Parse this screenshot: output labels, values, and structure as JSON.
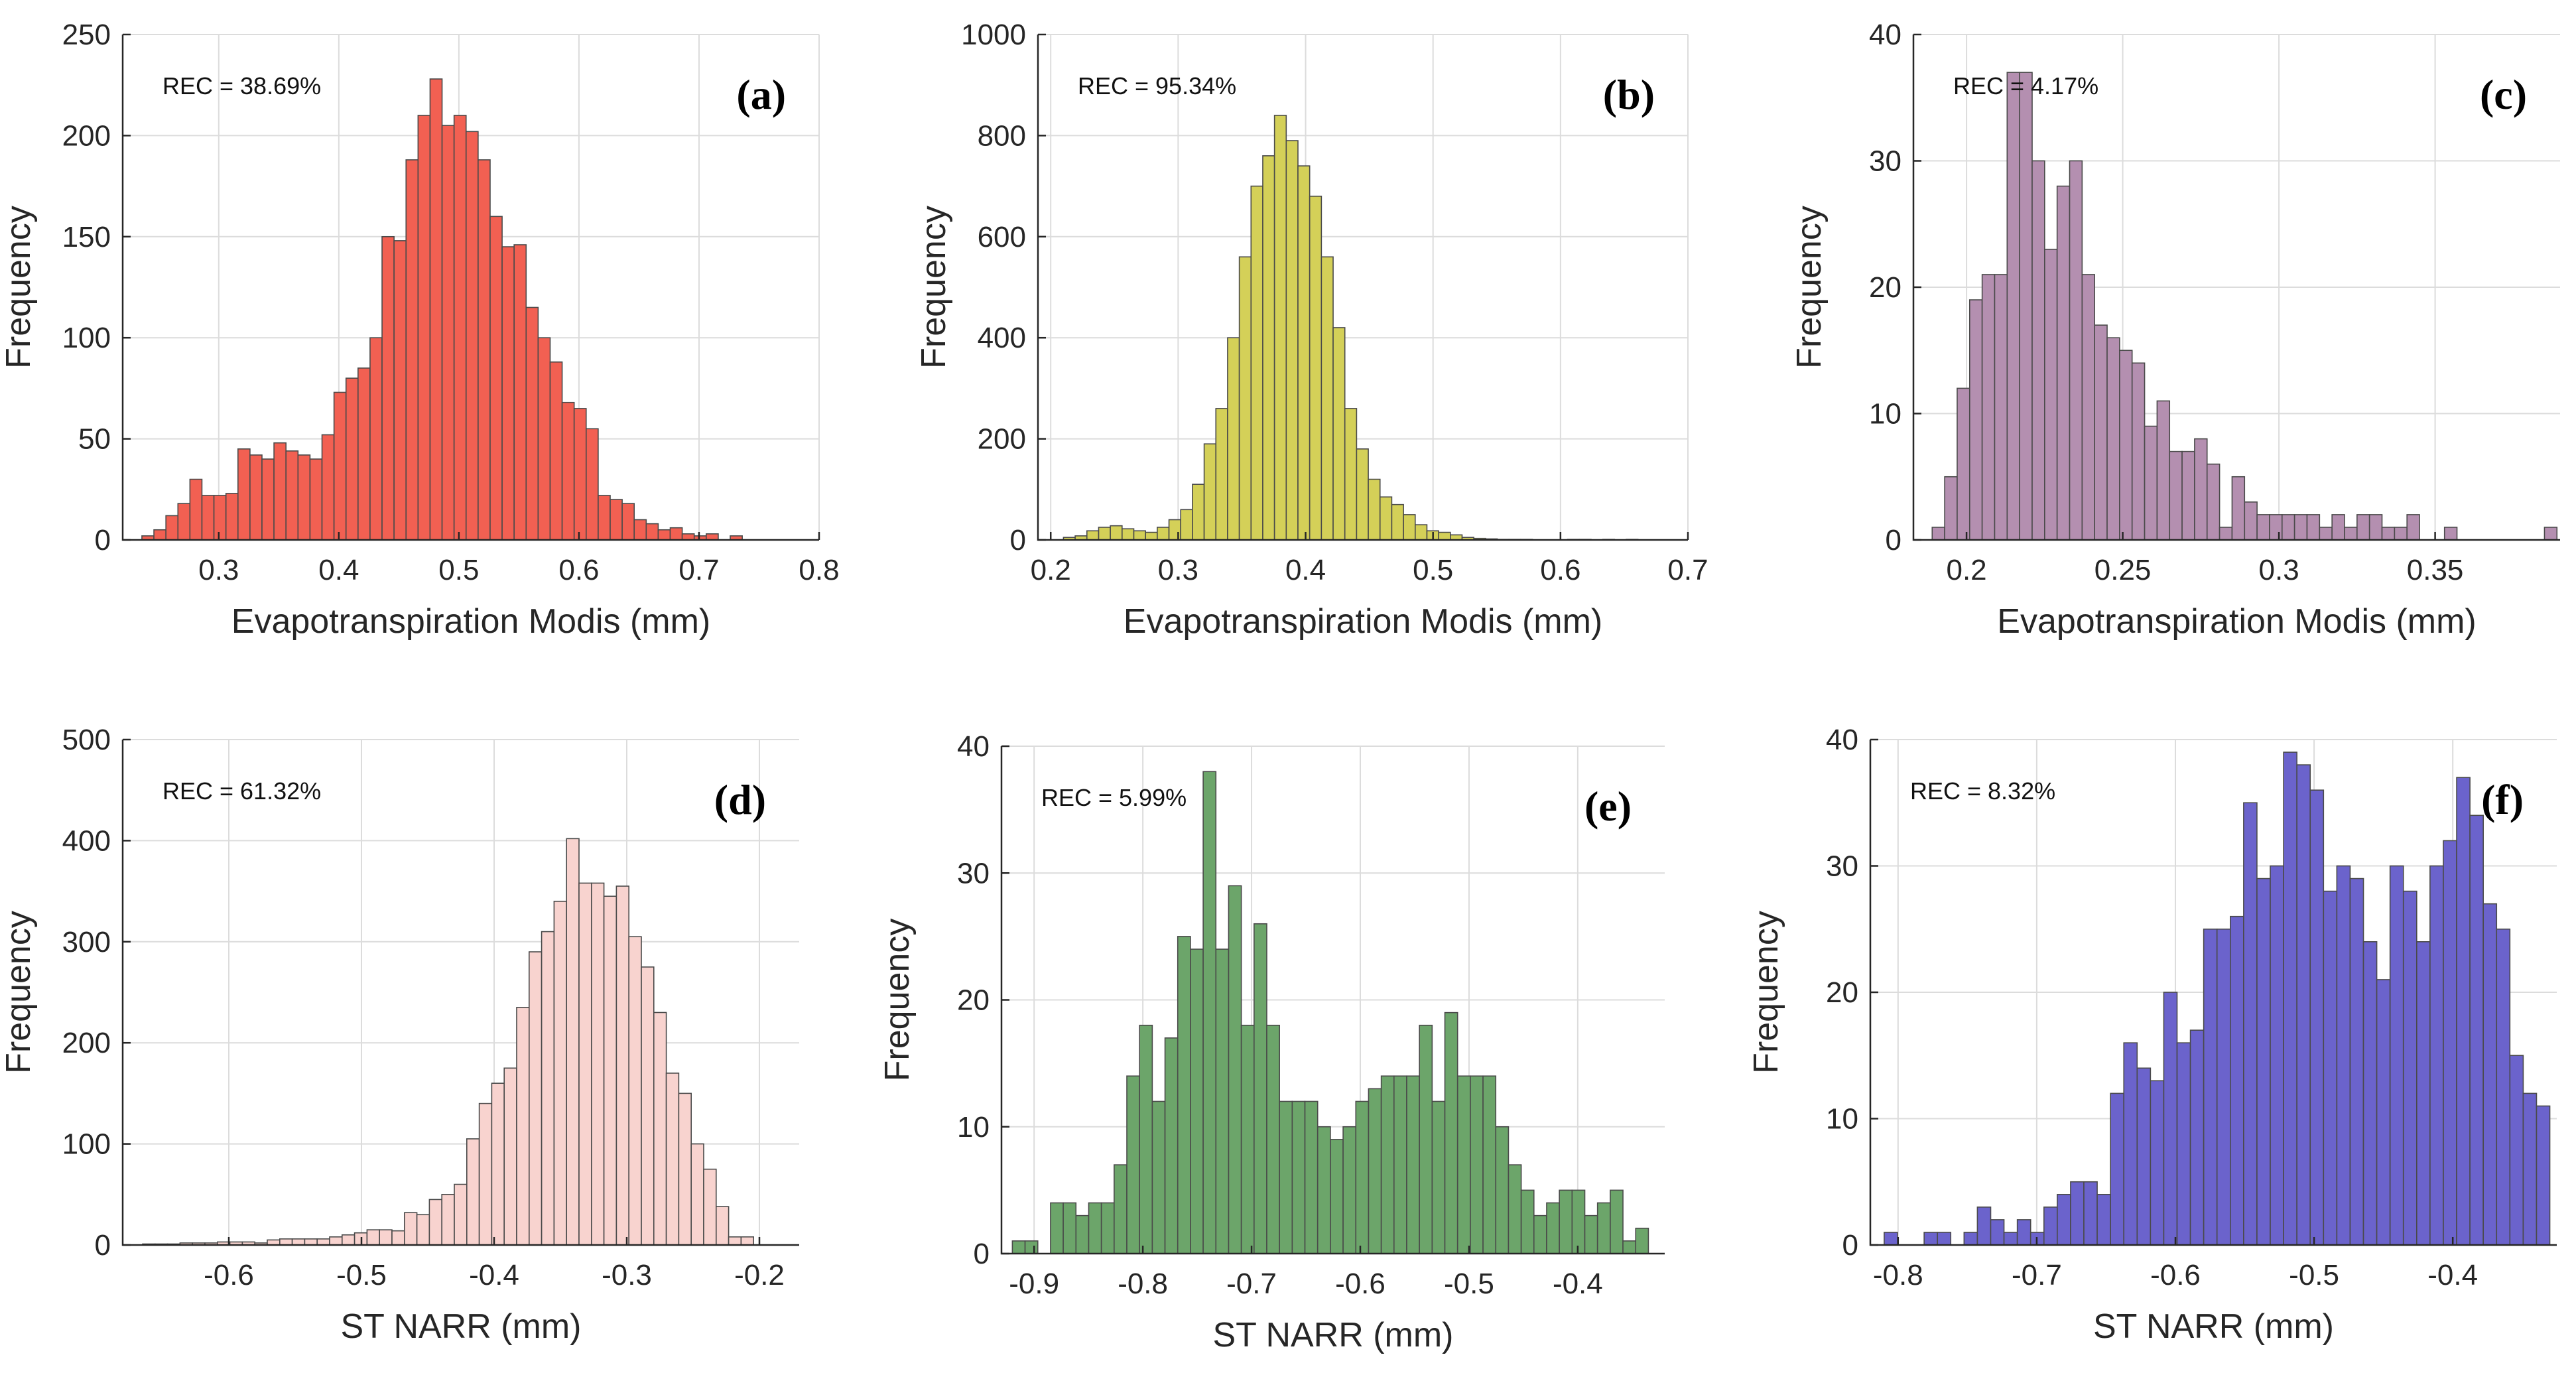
{
  "chart_data": [
    {
      "type": "bar",
      "panel_label": "(a)",
      "annotation": "REC = 38.69%",
      "xlabel": "Evapotranspiration Modis (mm)",
      "ylabel": "Frequency",
      "xlim": [
        0.22,
        0.8
      ],
      "ylim": [
        0,
        250
      ],
      "xticks": [
        0.3,
        0.4,
        0.5,
        0.6,
        0.7,
        0.8
      ],
      "xtick_labels": [
        "0.3",
        "0.4",
        "0.5",
        "0.6",
        "0.7",
        "0.8"
      ],
      "yticks": [
        0,
        50,
        100,
        150,
        200,
        250
      ],
      "ytick_labels": [
        "0",
        "50",
        "100",
        "150",
        "200",
        "250"
      ],
      "bin_start": 0.236,
      "bin_width": 0.01,
      "values": [
        2,
        5,
        12,
        18,
        30,
        22,
        22,
        23,
        45,
        42,
        40,
        48,
        44,
        42,
        40,
        52,
        73,
        80,
        85,
        100,
        150,
        148,
        188,
        210,
        228,
        205,
        210,
        202,
        188,
        160,
        145,
        146,
        115,
        100,
        88,
        68,
        65,
        55,
        22,
        20,
        18,
        10,
        8,
        5,
        6,
        3,
        2,
        3,
        0,
        2
      ],
      "color": "#f26052",
      "grid": true
    },
    {
      "type": "bar",
      "panel_label": "(b)",
      "annotation": "REC = 95.34%",
      "xlabel": "Evapotranspiration Modis (mm)",
      "ylabel": "Frequency",
      "xlim": [
        0.19,
        0.7
      ],
      "ylim": [
        0,
        1000
      ],
      "xticks": [
        0.2,
        0.3,
        0.4,
        0.5,
        0.6,
        0.7
      ],
      "xtick_labels": [
        "0.2",
        "0.3",
        "0.4",
        "0.5",
        "0.6",
        "0.7"
      ],
      "yticks": [
        0,
        200,
        400,
        600,
        800,
        1000
      ],
      "ytick_labels": [
        "0",
        "200",
        "400",
        "600",
        "800",
        "1000"
      ],
      "bin_start": 0.21,
      "bin_width": 0.0092,
      "values": [
        5,
        8,
        18,
        25,
        28,
        22,
        18,
        15,
        25,
        40,
        60,
        110,
        190,
        260,
        400,
        560,
        700,
        760,
        840,
        790,
        740,
        680,
        560,
        420,
        260,
        180,
        120,
        85,
        70,
        50,
        30,
        18,
        15,
        10,
        5,
        3,
        2,
        1,
        1,
        1,
        0,
        0,
        0,
        1,
        1,
        0,
        1,
        0,
        1,
        0
      ],
      "color": "#d4d058",
      "grid": true
    },
    {
      "type": "bar",
      "panel_label": "(c)",
      "annotation": "REC = 4.17%",
      "xlabel": "Evapotranspiration Modis (mm)",
      "ylabel": "Frequency",
      "xlim": [
        0.183,
        0.39
      ],
      "ylim": [
        0,
        40
      ],
      "xticks": [
        0.2,
        0.25,
        0.3,
        0.35
      ],
      "xtick_labels": [
        "0.2",
        "0.25",
        "0.3",
        "0.35"
      ],
      "yticks": [
        0,
        10,
        20,
        30,
        40
      ],
      "ytick_labels": [
        "0",
        "10",
        "20",
        "30",
        "40"
      ],
      "bin_start": 0.189,
      "bin_width": 0.004,
      "values": [
        1,
        5,
        12,
        19,
        21,
        21,
        37,
        37,
        30,
        23,
        28,
        30,
        21,
        17,
        16,
        15,
        14,
        9,
        11,
        7,
        7,
        8,
        6,
        1,
        5,
        3,
        2,
        2,
        2,
        2,
        2,
        1,
        2,
        1,
        2,
        2,
        1,
        1,
        2,
        0,
        0,
        1,
        0,
        0,
        0,
        0,
        0,
        0,
        0,
        1
      ],
      "color": "#b48fb0",
      "grid": true
    },
    {
      "type": "bar",
      "panel_label": "(d)",
      "annotation": "REC = 61.32%",
      "xlabel": "ST NARR (mm)",
      "ylabel": "Frequency",
      "xlim": [
        -0.68,
        -0.17
      ],
      "ylim": [
        0,
        500
      ],
      "xticks": [
        -0.6,
        -0.5,
        -0.4,
        -0.3,
        -0.2
      ],
      "xtick_labels": [
        "-0.6",
        "-0.5",
        "-0.4",
        "-0.3",
        "-0.2"
      ],
      "yticks": [
        0,
        100,
        200,
        300,
        400,
        500
      ],
      "ytick_labels": [
        "0",
        "100",
        "200",
        "300",
        "400",
        "500"
      ],
      "bin_start": -0.665,
      "bin_width": 0.0094,
      "values": [
        1,
        1,
        1,
        2,
        2,
        2,
        3,
        3,
        3,
        2,
        5,
        6,
        6,
        6,
        6,
        8,
        10,
        12,
        15,
        15,
        14,
        32,
        30,
        45,
        50,
        60,
        105,
        140,
        160,
        175,
        235,
        290,
        310,
        340,
        402,
        358,
        358,
        345,
        355,
        305,
        275,
        230,
        170,
        150,
        100,
        75,
        38,
        8,
        8,
        0
      ],
      "color": "#f8d3cf",
      "grid": true
    },
    {
      "type": "bar",
      "panel_label": "(e)",
      "annotation": "REC = 5.99%",
      "xlabel": "ST NARR (mm)",
      "ylabel": "Frequency",
      "xlim": [
        -0.93,
        -0.32
      ],
      "ylim": [
        0,
        40
      ],
      "xticks": [
        -0.9,
        -0.8,
        -0.7,
        -0.6,
        -0.5,
        -0.4
      ],
      "xtick_labels": [
        "-0.9",
        "-0.8",
        "-0.7",
        "-0.6",
        "-0.5",
        "-0.4"
      ],
      "yticks": [
        0,
        10,
        20,
        30,
        40
      ],
      "ytick_labels": [
        "0",
        "10",
        "20",
        "30",
        "40"
      ],
      "bin_start": -0.92,
      "bin_width": 0.0117,
      "values": [
        1,
        1,
        0,
        4,
        4,
        3,
        4,
        4,
        7,
        14,
        18,
        12,
        17,
        25,
        24,
        38,
        24,
        29,
        18,
        26,
        18,
        12,
        12,
        12,
        10,
        9,
        10,
        12,
        13,
        14,
        14,
        14,
        18,
        12,
        19,
        14,
        14,
        14,
        10,
        7,
        5,
        3,
        4,
        5,
        5,
        3,
        4,
        5,
        1,
        2
      ],
      "color": "#6ca56a",
      "grid": true
    },
    {
      "type": "bar",
      "panel_label": "(f)",
      "annotation": "REC = 8.32%",
      "xlabel": "ST NARR (mm)",
      "ylabel": "Frequency",
      "xlim": [
        -0.82,
        -0.325
      ],
      "ylim": [
        0,
        40
      ],
      "xticks": [
        -0.8,
        -0.7,
        -0.6,
        -0.5,
        -0.4
      ],
      "xtick_labels": [
        "-0.8",
        "-0.7",
        "-0.6",
        "-0.5",
        "-0.4"
      ],
      "yticks": [
        0,
        10,
        20,
        30,
        40
      ],
      "ytick_labels": [
        "0",
        "10",
        "20",
        "30",
        "40"
      ],
      "bin_start": -0.81,
      "bin_width": 0.0096,
      "values": [
        1,
        0,
        0,
        1,
        1,
        0,
        1,
        3,
        2,
        1,
        2,
        1,
        3,
        4,
        5,
        5,
        4,
        12,
        16,
        14,
        13,
        20,
        16,
        17,
        25,
        25,
        26,
        35,
        29,
        30,
        39,
        38,
        36,
        28,
        30,
        29,
        24,
        21,
        30,
        28,
        24,
        30,
        32,
        37,
        34,
        27,
        25,
        15,
        12,
        11
      ],
      "color": "#6b63cc",
      "grid": true
    }
  ]
}
